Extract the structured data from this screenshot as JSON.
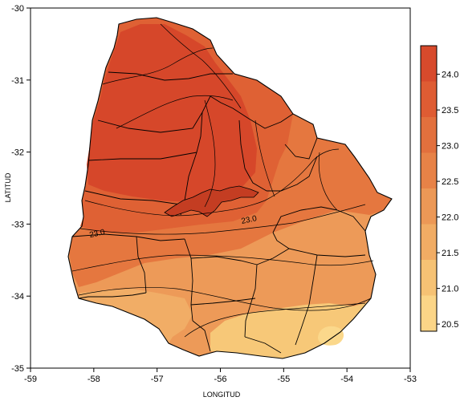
{
  "map": {
    "xlabel": "LONGITUD",
    "ylabel": "LATITUD",
    "xlim": [
      -59,
      -53
    ],
    "ylim": [
      -35,
      -30
    ],
    "x_ticks": [
      "-59",
      "-58",
      "-57",
      "-56",
      "-55",
      "-54",
      "-53"
    ],
    "y_ticks": [
      "-30",
      "-31",
      "-32",
      "-33",
      "-34",
      "-35"
    ],
    "contour_labels": [
      {
        "text": "23.0",
        "lon": -55.55,
        "lat": -32.93
      },
      {
        "text": "23.0",
        "lon": -57.95,
        "lat": -33.12
      }
    ]
  },
  "colorbar": {
    "levels": [
      "24.0",
      "23.5",
      "23.0",
      "22.5",
      "22.0",
      "21.5",
      "21.0",
      "20.5"
    ],
    "colors": [
      "#d74a2c",
      "#de5c33",
      "#e2703d",
      "#e78247",
      "#ec9856",
      "#f1ac64",
      "#f6c274",
      "#fbd587"
    ]
  }
}
